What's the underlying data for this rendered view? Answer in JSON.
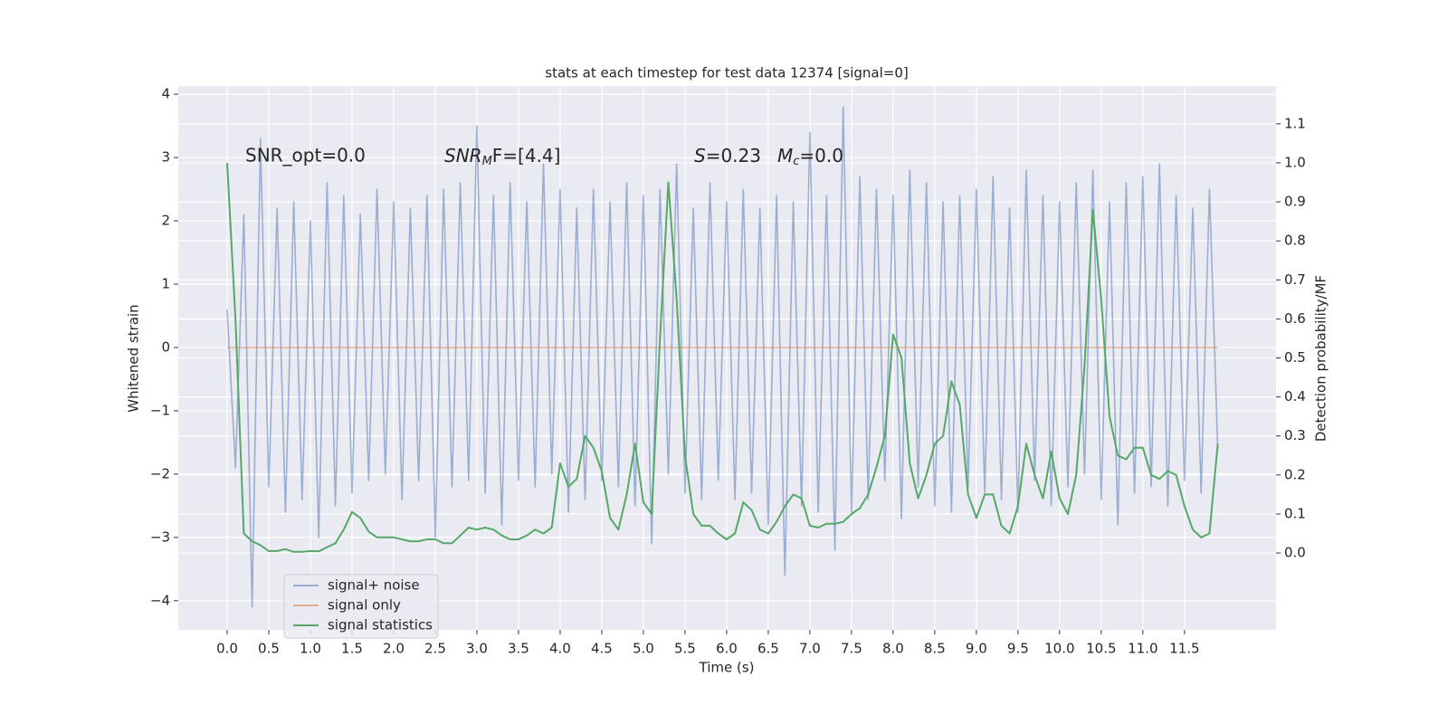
{
  "chart_data": {
    "type": "line",
    "title": "stats at each timestep for test data 12374 [signal=0]",
    "xlabel": "Time (s)",
    "ylabel": "Whitened strain",
    "y2label": "Detection probability/MF",
    "annotations": [
      "SNR_opt=0.0",
      [
        "SNR",
        "M",
        "F=[4.4]"
      ],
      [
        "S",
        "=0.23",
        "M",
        "c",
        "=0.0"
      ]
    ],
    "grid": true,
    "legend": "lower left",
    "xlim": [
      -0.587,
      12.6
    ],
    "ylim": [
      -4.46,
      4.13
    ],
    "y2lim": [
      -0.197,
      1.197
    ],
    "xticks": [
      {
        "value": 0,
        "label": "0.0"
      },
      0.5,
      {
        "value": 1,
        "label": "1.0"
      },
      1.5,
      {
        "value": 2,
        "label": "2.0"
      },
      2.5,
      {
        "value": 3,
        "label": "3.0"
      },
      3.5,
      {
        "value": 4,
        "label": "4.0"
      },
      4.5,
      {
        "value": 5,
        "label": "5.0"
      },
      5.5,
      {
        "value": 6,
        "label": "6.0"
      },
      6.5,
      {
        "value": 7,
        "label": "7.0"
      },
      7.5,
      {
        "value": 8,
        "label": "8.0"
      },
      8.5,
      {
        "value": 9,
        "label": "9.0"
      },
      9.5,
      {
        "value": 10,
        "label": "10.0"
      },
      10.5,
      {
        "value": 11,
        "label": "11.0"
      },
      11.5
    ],
    "yticks": [
      {
        "value": -4,
        "label": "−4"
      },
      {
        "value": -3,
        "label": "−3"
      },
      {
        "value": -2,
        "label": "−2"
      },
      {
        "value": -1,
        "label": "−1"
      },
      0,
      1,
      2,
      3,
      4
    ],
    "y2ticks": [
      {
        "value": 0,
        "label": "0.0"
      },
      0.1,
      0.2,
      0.3,
      0.4,
      0.5,
      0.6,
      0.7,
      0.8,
      0.9,
      {
        "value": 1,
        "label": "1.0"
      },
      1.1
    ],
    "x": [
      0,
      0.1,
      0.2,
      0.3,
      0.4,
      0.5,
      0.6,
      0.7,
      0.8,
      0.9,
      1,
      1.1,
      1.2,
      1.3,
      1.4,
      1.5,
      1.6,
      1.7,
      1.8,
      1.9,
      2,
      2.1,
      2.2,
      2.3,
      2.4,
      2.5,
      2.6,
      2.7,
      2.8,
      2.9,
      3,
      3.1,
      3.2,
      3.3,
      3.4,
      3.5,
      3.6,
      3.7,
      3.8,
      3.9,
      4,
      4.1,
      4.2,
      4.3,
      4.4,
      4.5,
      4.6,
      4.7,
      4.8,
      4.9,
      5,
      5.1,
      5.2,
      5.3,
      5.4,
      5.5,
      5.6,
      5.7,
      5.8,
      5.9,
      6,
      6.1,
      6.2,
      6.3,
      6.4,
      6.5,
      6.6,
      6.7,
      6.8,
      6.9,
      7,
      7.1,
      7.2,
      7.3,
      7.4,
      7.5,
      7.6,
      7.7,
      7.8,
      7.9,
      8,
      8.1,
      8.2,
      8.3,
      8.4,
      8.5,
      8.6,
      8.7,
      8.8,
      8.9,
      9,
      9.1,
      9.2,
      9.3,
      9.4,
      9.5,
      9.6,
      9.7,
      9.8,
      9.9,
      10,
      10.1,
      10.2,
      10.3,
      10.4,
      10.5,
      10.6,
      10.7,
      10.8,
      10.9,
      11,
      11.1,
      11.2,
      11.3,
      11.4,
      11.5,
      11.6,
      11.7,
      11.8,
      11.9
    ],
    "series": [
      {
        "name": "signal+ noise",
        "color": "#4c72b0",
        "values": [
          0.6,
          -1.9,
          2.1,
          -4.1,
          3.3,
          -2.2,
          2.2,
          -2.6,
          2.3,
          -2.4,
          2.0,
          -3.0,
          2.6,
          -2.5,
          2.4,
          -2.3,
          2.1,
          -2.1,
          2.5,
          -2.0,
          2.3,
          -2.4,
          2.2,
          -2.1,
          2.4,
          -3.0,
          2.5,
          -2.2,
          2.6,
          -2.1,
          3.5,
          -2.3,
          2.4,
          -2.8,
          2.6,
          -2.1,
          2.3,
          -2.2,
          2.9,
          -2.0,
          2.5,
          -2.6,
          2.2,
          -2.4,
          2.5,
          -2.1,
          2.3,
          -2.2,
          2.6,
          -2.5,
          2.4,
          -3.1,
          2.5,
          -2.0,
          2.9,
          -2.3,
          2.2,
          -2.4,
          2.6,
          -2.1,
          2.3,
          -2.4,
          2.5,
          -2.3,
          2.2,
          -2.8,
          2.4,
          -3.6,
          2.3,
          -2.5,
          3.4,
          -2.6,
          2.4,
          -3.2,
          3.8,
          -2.6,
          2.7,
          -2.4,
          2.5,
          -2.1,
          2.4,
          -2.7,
          2.8,
          -2.2,
          2.6,
          -2.5,
          2.3,
          -2.6,
          2.4,
          -2.2,
          2.5,
          -2.3,
          2.7,
          -2.4,
          2.2,
          -2.6,
          2.8,
          -2.1,
          2.4,
          -2.5,
          2.3,
          -2.2,
          2.6,
          -2.0,
          2.8,
          -2.4,
          2.3,
          -2.8,
          2.6,
          -2.3,
          2.7,
          -2.2,
          2.9,
          -2.5,
          2.4,
          -2.1,
          2.2,
          -2.3,
          2.5,
          -1.6
        ]
      },
      {
        "name": "signal only",
        "color": "#dd8452",
        "values": [
          0,
          0,
          0,
          0,
          0,
          0,
          0,
          0,
          0,
          0,
          0,
          0,
          0,
          0,
          0,
          0,
          0,
          0,
          0,
          0,
          0,
          0,
          0,
          0,
          0,
          0,
          0,
          0,
          0,
          0,
          0,
          0,
          0,
          0,
          0,
          0,
          0,
          0,
          0,
          0,
          0,
          0,
          0,
          0,
          0,
          0,
          0,
          0,
          0,
          0,
          0,
          0,
          0,
          0,
          0,
          0,
          0,
          0,
          0,
          0,
          0,
          0,
          0,
          0,
          0,
          0,
          0,
          0,
          0,
          0,
          0,
          0,
          0,
          0,
          0,
          0,
          0,
          0,
          0,
          0,
          0,
          0,
          0,
          0,
          0,
          0,
          0,
          0,
          0,
          0,
          0,
          0,
          0,
          0,
          0,
          0,
          0,
          0,
          0,
          0,
          0,
          0,
          0,
          0,
          0,
          0,
          0,
          0,
          0,
          0,
          0,
          0,
          0,
          0,
          0,
          0,
          0,
          0,
          0,
          0
        ]
      },
      {
        "name": "signal statistics",
        "color": "#55a868",
        "axis": "y2",
        "values": [
          1.0,
          0.6,
          0.05,
          0.03,
          0.02,
          0.005,
          0.005,
          0.01,
          0.003,
          0.003,
          0.005,
          0.004,
          0.015,
          0.025,
          0.06,
          0.105,
          0.09,
          0.055,
          0.04,
          0.04,
          0.04,
          0.035,
          0.03,
          0.03,
          0.035,
          0.035,
          0.025,
          0.025,
          0.045,
          0.065,
          0.06,
          0.065,
          0.06,
          0.045,
          0.035,
          0.035,
          0.045,
          0.06,
          0.05,
          0.065,
          0.23,
          0.17,
          0.19,
          0.3,
          0.27,
          0.21,
          0.09,
          0.06,
          0.15,
          0.28,
          0.13,
          0.1,
          0.55,
          0.95,
          0.65,
          0.25,
          0.1,
          0.07,
          0.07,
          0.05,
          0.035,
          0.05,
          0.13,
          0.11,
          0.06,
          0.05,
          0.08,
          0.12,
          0.15,
          0.14,
          0.07,
          0.065,
          0.075,
          0.075,
          0.08,
          0.1,
          0.115,
          0.15,
          0.22,
          0.3,
          0.56,
          0.5,
          0.23,
          0.14,
          0.2,
          0.28,
          0.3,
          0.44,
          0.38,
          0.15,
          0.09,
          0.15,
          0.15,
          0.07,
          0.05,
          0.12,
          0.28,
          0.2,
          0.14,
          0.26,
          0.14,
          0.1,
          0.2,
          0.48,
          0.88,
          0.65,
          0.35,
          0.25,
          0.24,
          0.27,
          0.27,
          0.2,
          0.19,
          0.21,
          0.2,
          0.12,
          0.06,
          0.04,
          0.05,
          0.28
        ]
      }
    ]
  }
}
